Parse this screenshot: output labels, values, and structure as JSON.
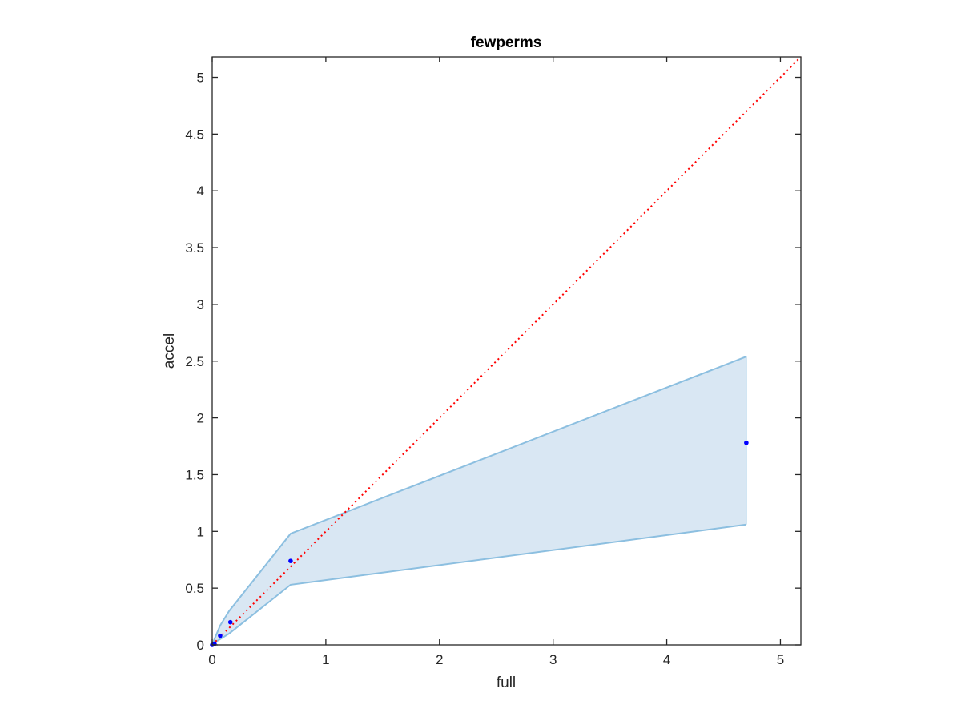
{
  "chart_data": {
    "type": "area",
    "title": "fewperms",
    "xlabel": "full",
    "ylabel": "accel",
    "xlim": [
      0,
      5.18
    ],
    "ylim": [
      0,
      5.18
    ],
    "x_ticks": [
      0,
      1,
      2,
      3,
      4,
      5
    ],
    "x_tick_labels": [
      "0",
      "1",
      "2",
      "3",
      "4",
      "5"
    ],
    "y_ticks": [
      0,
      0.5,
      1,
      1.5,
      2,
      2.5,
      3,
      3.5,
      4,
      4.5,
      5
    ],
    "y_tick_labels": [
      "0",
      "0.5",
      "1",
      "1.5",
      "2",
      "2.5",
      "3",
      "3.5",
      "4",
      "4.5",
      "5"
    ],
    "grid": false,
    "band": {
      "x": [
        0,
        0.02,
        0.07,
        0.15,
        0.69,
        4.7
      ],
      "upper": [
        0,
        0.05,
        0.17,
        0.3,
        0.98,
        2.54
      ],
      "lower": [
        0,
        0.02,
        0.05,
        0.1,
        0.53,
        1.06
      ],
      "fill_color": "#d9e7f3",
      "edge_color": "#8cbfe0"
    },
    "points": {
      "x": [
        0,
        0.02,
        0.07,
        0.16,
        0.69,
        4.7
      ],
      "y": [
        0,
        0.01,
        0.08,
        0.2,
        0.74,
        1.78
      ],
      "color": "#0000ff"
    },
    "reference_line": {
      "x": [
        0,
        5.18
      ],
      "y": [
        0,
        5.18
      ],
      "color": "#ff0000",
      "style": "dotted"
    }
  }
}
